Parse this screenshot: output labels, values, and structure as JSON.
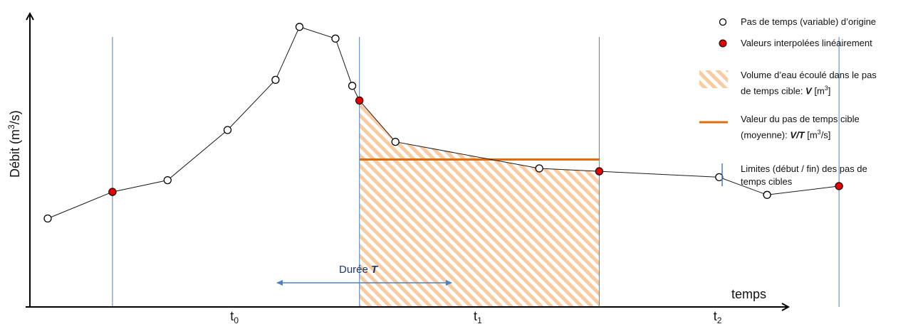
{
  "axes": {
    "y_label": "Débit (m",
    "y_label_sup": "3",
    "y_label_end": "/s)",
    "x_label": "temps"
  },
  "periods": [
    {
      "base": "t",
      "sub": "0"
    },
    {
      "base": "t",
      "sub": "1"
    },
    {
      "base": "t",
      "sub": "2"
    }
  ],
  "duration": {
    "text": "Durée ",
    "var": "T"
  },
  "legend": {
    "original": "Pas de temps (variable) d’origine",
    "interpolated": "Valeurs interpolées linéairement",
    "volume_line1": "Volume d’eau écoulé dans le pas",
    "volume_line2_pre": "de temps cible: ",
    "volume_var": "V",
    "volume_unit_pre": " [m",
    "volume_unit_sup": "3",
    "volume_unit_post": "]",
    "mean_line1": "Valeur du pas de temps cible",
    "mean_line2_pre": "(moyenne): ",
    "mean_var": "V/T",
    "mean_unit_pre": "  [m",
    "mean_unit_sup": "3",
    "mean_unit_post": "/s]",
    "limits_line1": "Limites (début / fin) des pas de",
    "limits_line2": "temps cibles"
  },
  "colors": {
    "original_fill": "#ffffff",
    "interpolated_fill": "#e00000",
    "mean_line": "#e36c0a",
    "hatch": "#f9cba0",
    "limits": "#4f81bd",
    "duration_arrow": "#4f81bd",
    "curve": "#1a1a1a"
  },
  "chart_data": {
    "type": "line",
    "note_units": "x and y in arbitrary plotted units (no numeric ticks shown)",
    "original_points": [
      [
        0.0,
        0.3
      ],
      [
        0.5,
        0.43
      ],
      [
        0.75,
        0.6
      ],
      [
        0.95,
        0.77
      ],
      [
        1.05,
        0.95
      ],
      [
        1.2,
        0.91
      ],
      [
        1.27,
        0.75
      ],
      [
        1.45,
        0.56
      ],
      [
        2.05,
        0.47
      ],
      [
        2.8,
        0.44
      ],
      [
        3.0,
        0.38
      ]
    ],
    "interpolated_points": [
      [
        0.27,
        0.39
      ],
      [
        1.3,
        0.7
      ],
      [
        2.3,
        0.46
      ],
      [
        3.3,
        0.41
      ]
    ],
    "target_limits": [
      0.27,
      1.3,
      2.3,
      3.3
    ],
    "mean_value_t1": 0.5
  }
}
